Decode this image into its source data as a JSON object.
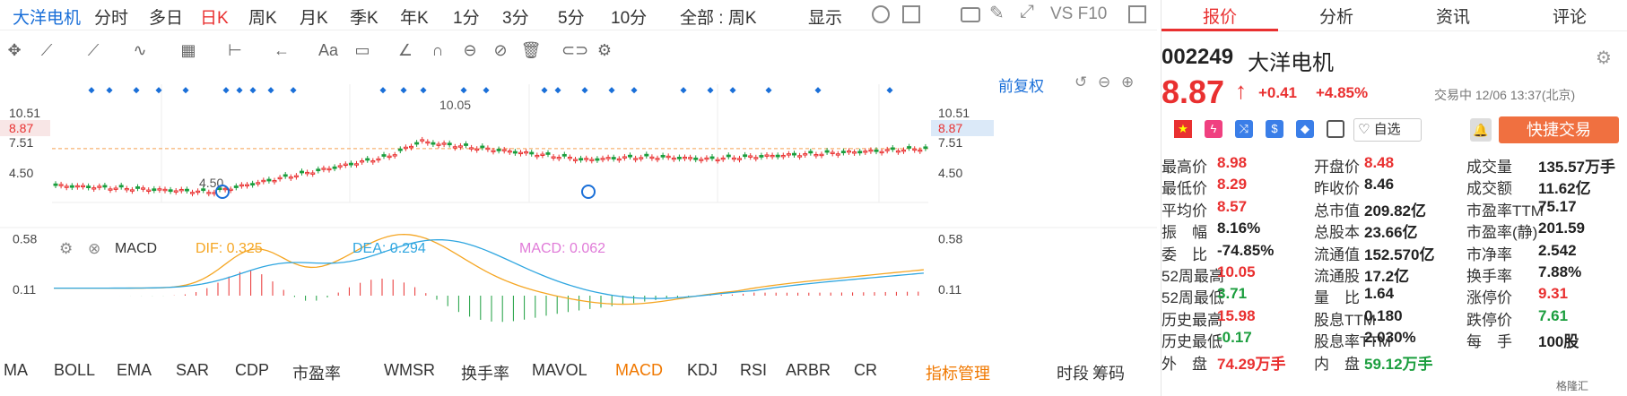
{
  "topbar": {
    "name": "大洋电机",
    "periods": [
      "分时",
      "多日",
      "日K",
      "周K",
      "月K",
      "季K",
      "年K",
      "1分",
      "3分",
      "5分",
      "10分"
    ],
    "active_period": "日K",
    "filter": "全部 : 周K",
    "display": "显示",
    "vsf10": "VS F10"
  },
  "chart": {
    "restore_label": "前复权",
    "price_high_label": "10.05",
    "price_low_label": "4.50",
    "y_ticks_left": [
      "10.51",
      "7.51",
      "4.50"
    ],
    "y_ticks_right": [
      "10.51",
      "7.51",
      "4.50"
    ],
    "current_price_tag": "8.87",
    "macd_header": {
      "name": "MACD",
      "dif": "DIF: 0.325",
      "dea": "DEA: 0.294",
      "macd": "MACD: 0.062"
    },
    "macd_ticks": [
      "0.58",
      "0.11"
    ],
    "colors": {
      "up": "#e93030",
      "down": "#1b9e3e",
      "dif": "#f5a623",
      "dea": "#2fa6e0",
      "macd_label": "#e07ad8"
    }
  },
  "indicators": [
    "MA",
    "BOLL",
    "EMA",
    "SAR",
    "CDP",
    "市盈率",
    "WMSR",
    "换手率",
    "MAVOL",
    "MACD",
    "KDJ",
    "RSI",
    "ARBR",
    "CR"
  ],
  "indicator_active": "MACD",
  "indicator_manage": "指标管理",
  "time_label": "时段",
  "chips_label": "筹码",
  "right": {
    "tabs": [
      "报价",
      "分析",
      "资讯",
      "评论"
    ],
    "active_tab": "报价",
    "code": "002249",
    "name": "大洋电机",
    "price": "8.87",
    "change": "+0.41",
    "change_pct": "+4.85%",
    "trade_status": "交易中 12/06 13:37(北京)",
    "watch_label": "自选",
    "trade_button": "快捷交易",
    "quotes": [
      [
        [
          "最高价",
          "8.98",
          "red"
        ],
        [
          "开盘价",
          "8.48",
          "red"
        ],
        [
          "成交量",
          "135.57万手",
          "dark"
        ]
      ],
      [
        [
          "最低价",
          "8.29",
          "red"
        ],
        [
          "昨收价",
          "8.46",
          "dark"
        ],
        [
          "成交额",
          "11.62亿",
          "dark"
        ]
      ],
      [
        [
          "平均价",
          "8.57",
          "red"
        ],
        [
          "总市值",
          "209.82亿",
          "dark"
        ],
        [
          "市盈率TTM",
          "75.17",
          "dark"
        ]
      ],
      [
        [
          "振　幅",
          "8.16%",
          "dark"
        ],
        [
          "总股本",
          "23.66亿",
          "dark"
        ],
        [
          "市盈率(静)",
          "201.59",
          "dark"
        ]
      ],
      [
        [
          "委　比",
          "-74.85%",
          "dark"
        ],
        [
          "流通值",
          "152.570亿",
          "dark"
        ],
        [
          "市净率",
          "2.542",
          "dark"
        ]
      ],
      [
        [
          "52周最高",
          "10.05",
          "red"
        ],
        [
          "流通股",
          "17.2亿",
          "dark"
        ],
        [
          "换手率",
          "7.88%",
          "dark"
        ]
      ],
      [
        [
          "52周最低",
          "3.71",
          "green"
        ],
        [
          "量　比",
          "1.64",
          "dark"
        ],
        [
          "涨停价",
          "9.31",
          "red"
        ]
      ],
      [
        [
          "历史最高",
          "15.98",
          "red"
        ],
        [
          "股息TTM",
          "0.180",
          "dark"
        ],
        [
          "跌停价",
          "7.61",
          "green"
        ]
      ],
      [
        [
          "历史最低",
          "-0.17",
          "green"
        ],
        [
          "股息率TTM",
          "2.030%",
          "dark"
        ],
        [
          "每　手",
          "100股",
          "dark"
        ]
      ],
      [
        [
          "外　盘",
          "74.29万手",
          "red"
        ],
        [
          "内　盘",
          "59.12万手",
          "green"
        ],
        [
          "",
          "",
          " dark"
        ]
      ]
    ],
    "watermark": "格隆汇"
  }
}
